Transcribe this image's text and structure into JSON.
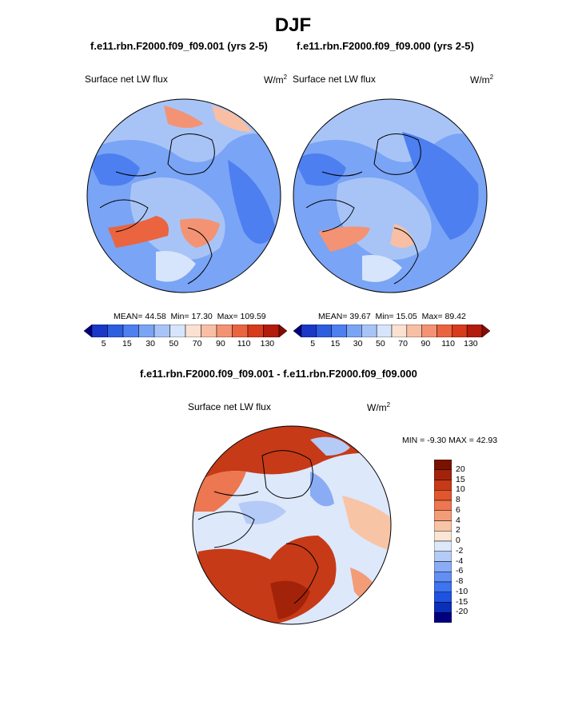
{
  "figure": {
    "title": "DJF",
    "left_case": "f.e11.rbn.F2000.f09_f09.001 (yrs 2-5)",
    "right_case": "f.e11.rbn.F2000.f09_f09.000 (yrs 2-5)",
    "diff_title": "f.e11.rbn.F2000.f09_f09.001 - f.e11.rbn.F2000.f09_f09.000"
  },
  "colors": {
    "abs_scale": [
      "#000080",
      "#1a38c8",
      "#2e5ee0",
      "#4d7ff0",
      "#7aa4f5",
      "#a8c4f7",
      "#d6e5fb",
      "#fbe1d2",
      "#f8bfa4",
      "#f39373",
      "#ea6440",
      "#d83a1c",
      "#b31b0b",
      "#850b00"
    ],
    "diff_scale": [
      "#00007f",
      "#0a2fb8",
      "#1f52e0",
      "#3d74f0",
      "#628ff3",
      "#8aacf5",
      "#b4cbf7",
      "#dde8fb",
      "#fbe6d6",
      "#f8c4a6",
      "#f39c78",
      "#ec7750",
      "#e2562d",
      "#c73a17",
      "#a3230a",
      "#7a1200"
    ],
    "land_outline": "#000000"
  },
  "chart_data": [
    {
      "type": "heatmap",
      "projection": "north polar stereographic",
      "left_label": "Surface net LW flux",
      "units_base": "W/m",
      "units_exp": "2",
      "stats": {
        "mean_label": "MEAN=",
        "mean": "44.58",
        "min_label": "Min=",
        "min": "17.30",
        "max_label": "Max=",
        "max": "109.59"
      },
      "colorbar_ticks": [
        "5",
        "15",
        "30",
        "50",
        "70",
        "90",
        "110",
        "130"
      ]
    },
    {
      "type": "heatmap",
      "projection": "north polar stereographic",
      "left_label": "Surface net LW flux",
      "units_base": "W/m",
      "units_exp": "2",
      "stats": {
        "mean_label": "MEAN=",
        "mean": "39.67",
        "min_label": "Min=",
        "min": "15.05",
        "max_label": "Max=",
        "max": "89.42"
      },
      "colorbar_ticks": [
        "5",
        "15",
        "30",
        "50",
        "70",
        "90",
        "110",
        "130"
      ]
    },
    {
      "type": "heatmap",
      "projection": "north polar stereographic",
      "left_label": "Surface net LW flux",
      "units_base": "W/m",
      "units_exp": "2",
      "stats": {
        "min_label": "MIN =",
        "min": "-9.30",
        "max_label": "MAX =",
        "max": "42.93"
      },
      "colorbar_ticks": [
        "20",
        "15",
        "10",
        "8",
        "6",
        "4",
        "2",
        "0",
        "-2",
        "-4",
        "-6",
        "-8",
        "-10",
        "-15",
        "-20"
      ]
    }
  ]
}
